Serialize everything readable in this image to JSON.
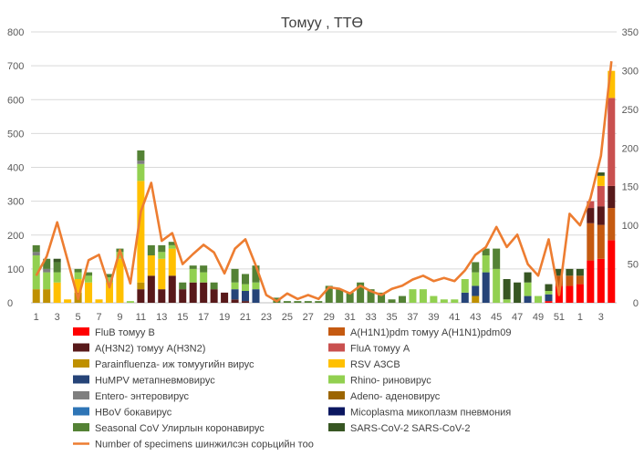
{
  "chart_data": {
    "type": "bar",
    "stacked": true,
    "title": "Томуу , ТТӨ",
    "xlabel": "",
    "ylabel": "",
    "ylim": [
      0,
      800
    ],
    "y2lim": [
      0,
      350
    ],
    "y_ticks": [
      0,
      100,
      200,
      300,
      400,
      500,
      600,
      700,
      800
    ],
    "y2_ticks": [
      0,
      50,
      100,
      150,
      200,
      250,
      300,
      350
    ],
    "x_tick_labels": [
      "1",
      "3",
      "5",
      "7",
      "9",
      "11",
      "13",
      "15",
      "17",
      "19",
      "21",
      "23",
      "25",
      "27",
      "29",
      "31",
      "33",
      "35",
      "37",
      "39",
      "41",
      "43",
      "45",
      "47",
      "49",
      "51",
      "1",
      "3"
    ],
    "categories": [
      "1",
      "2",
      "3",
      "4",
      "5",
      "6",
      "7",
      "8",
      "9",
      "10",
      "11",
      "12",
      "13",
      "14",
      "15",
      "16",
      "17",
      "18",
      "19",
      "20",
      "21",
      "22",
      "23",
      "24",
      "25",
      "26",
      "27",
      "28",
      "29",
      "30",
      "31",
      "32",
      "33",
      "34",
      "35",
      "36",
      "37",
      "38",
      "39",
      "40",
      "41",
      "42",
      "43",
      "44",
      "45",
      "46",
      "47",
      "48",
      "49",
      "50",
      "51",
      "52",
      "1",
      "2",
      "3",
      "4"
    ],
    "grid": true,
    "legend_position": "bottom",
    "series": [
      {
        "name": "FluB томуу B",
        "color": "#ff0000",
        "values": [
          0,
          0,
          0,
          0,
          0,
          0,
          0,
          0,
          0,
          0,
          0,
          0,
          0,
          0,
          0,
          0,
          0,
          0,
          0,
          0,
          0,
          0,
          0,
          0,
          0,
          0,
          0,
          0,
          0,
          0,
          0,
          0,
          0,
          0,
          0,
          0,
          0,
          0,
          0,
          0,
          0,
          0,
          0,
          0,
          0,
          0,
          0,
          0,
          0,
          5,
          50,
          50,
          55,
          125,
          130,
          185
        ]
      },
      {
        "name": "A(H1N1)pdm томуу A(H1N1)pdm09",
        "color": "#c55a11",
        "values": [
          0,
          0,
          0,
          0,
          0,
          0,
          0,
          0,
          0,
          0,
          0,
          0,
          0,
          0,
          0,
          0,
          0,
          0,
          0,
          0,
          0,
          0,
          0,
          0,
          0,
          0,
          0,
          0,
          0,
          0,
          0,
          0,
          0,
          0,
          0,
          0,
          0,
          0,
          0,
          0,
          0,
          0,
          0,
          0,
          0,
          0,
          0,
          0,
          0,
          0,
          30,
          30,
          25,
          110,
          100,
          95
        ]
      },
      {
        "name": "A(H3N2) томуу A(H3N2)",
        "color": "#58191a",
        "values": [
          0,
          0,
          0,
          0,
          0,
          0,
          0,
          0,
          0,
          0,
          40,
          80,
          40,
          80,
          40,
          60,
          60,
          40,
          30,
          10,
          5,
          0,
          0,
          0,
          0,
          0,
          0,
          0,
          0,
          0,
          0,
          0,
          0,
          0,
          0,
          0,
          0,
          0,
          0,
          0,
          0,
          0,
          0,
          0,
          0,
          0,
          0,
          0,
          0,
          0,
          0,
          0,
          0,
          45,
          55,
          65
        ]
      },
      {
        "name": "FluA томуу A",
        "color": "#c9504f",
        "values": [
          0,
          0,
          0,
          0,
          0,
          0,
          0,
          0,
          0,
          0,
          0,
          0,
          0,
          0,
          0,
          0,
          0,
          0,
          0,
          0,
          0,
          0,
          0,
          0,
          0,
          0,
          0,
          0,
          0,
          0,
          0,
          0,
          0,
          0,
          0,
          0,
          0,
          0,
          0,
          0,
          0,
          0,
          0,
          0,
          0,
          0,
          0,
          0,
          0,
          0,
          0,
          0,
          0,
          20,
          60,
          260
        ]
      },
      {
        "name": "Parainfluenza- иж томуугийн вирус",
        "color": "#bf9000",
        "values": [
          40,
          40,
          0,
          0,
          30,
          0,
          0,
          0,
          0,
          0,
          20,
          0,
          0,
          0,
          0,
          0,
          0,
          0,
          0,
          0,
          0,
          0,
          0,
          0,
          0,
          0,
          0,
          0,
          0,
          0,
          0,
          0,
          0,
          0,
          0,
          0,
          0,
          0,
          0,
          0,
          0,
          0,
          20,
          0,
          0,
          0,
          0,
          0,
          0,
          0,
          0,
          0,
          0,
          0,
          0,
          0
        ]
      },
      {
        "name": "RSV АЗСВ",
        "color": "#ffc000",
        "values": [
          0,
          0,
          60,
          10,
          40,
          60,
          10,
          60,
          130,
          0,
          300,
          60,
          90,
          80,
          0,
          0,
          0,
          0,
          0,
          0,
          0,
          0,
          0,
          0,
          0,
          0,
          0,
          0,
          0,
          0,
          0,
          0,
          0,
          0,
          0,
          0,
          0,
          0,
          0,
          0,
          0,
          0,
          0,
          0,
          0,
          0,
          0,
          0,
          0,
          0,
          0,
          0,
          0,
          0,
          30,
          80
        ]
      },
      {
        "name": "HuMPV метапневмовирус",
        "color": "#264478",
        "values": [
          0,
          0,
          0,
          0,
          0,
          0,
          0,
          0,
          0,
          0,
          0,
          0,
          0,
          0,
          0,
          0,
          0,
          0,
          0,
          30,
          30,
          40,
          0,
          0,
          0,
          0,
          0,
          0,
          0,
          0,
          0,
          0,
          0,
          0,
          0,
          0,
          0,
          0,
          0,
          0,
          0,
          30,
          30,
          90,
          0,
          0,
          0,
          20,
          0,
          20,
          0,
          0,
          0,
          0,
          0,
          0
        ]
      },
      {
        "name": "Rhino- риновирус",
        "color": "#92d050",
        "values": [
          100,
          50,
          30,
          0,
          20,
          20,
          0,
          15,
          20,
          5,
          50,
          0,
          20,
          10,
          0,
          40,
          30,
          0,
          0,
          20,
          20,
          20,
          0,
          0,
          0,
          0,
          0,
          0,
          0,
          0,
          0,
          0,
          0,
          0,
          0,
          0,
          40,
          40,
          20,
          10,
          10,
          40,
          40,
          50,
          100,
          10,
          0,
          40,
          20,
          10,
          0,
          0,
          0,
          0,
          0,
          0
        ]
      },
      {
        "name": "Entero- энтеровирус",
        "color": "#7f7f7f",
        "values": [
          10,
          10,
          0,
          0,
          0,
          0,
          0,
          0,
          0,
          0,
          10,
          0,
          0,
          0,
          0,
          0,
          0,
          0,
          0,
          0,
          0,
          0,
          0,
          0,
          0,
          0,
          0,
          0,
          0,
          0,
          0,
          0,
          0,
          0,
          0,
          0,
          0,
          0,
          0,
          0,
          0,
          0,
          0,
          0,
          0,
          0,
          0,
          0,
          0,
          0,
          0,
          0,
          0,
          0,
          0,
          0
        ]
      },
      {
        "name": "Adeno- аденовирус",
        "color": "#9c6500",
        "values": [
          0,
          0,
          0,
          0,
          0,
          0,
          0,
          0,
          0,
          0,
          0,
          0,
          0,
          0,
          0,
          0,
          0,
          0,
          0,
          0,
          0,
          0,
          0,
          0,
          0,
          0,
          0,
          0,
          0,
          0,
          0,
          0,
          0,
          0,
          0,
          0,
          0,
          0,
          0,
          0,
          0,
          0,
          0,
          0,
          0,
          0,
          0,
          0,
          0,
          0,
          0,
          0,
          0,
          0,
          0,
          0
        ]
      },
      {
        "name": "HBoV бокавирус",
        "color": "#2e75b6",
        "values": [
          0,
          0,
          0,
          0,
          0,
          0,
          0,
          0,
          0,
          0,
          0,
          0,
          0,
          0,
          0,
          0,
          0,
          0,
          0,
          0,
          0,
          0,
          0,
          0,
          0,
          0,
          0,
          0,
          0,
          0,
          0,
          0,
          0,
          0,
          0,
          0,
          0,
          0,
          0,
          0,
          0,
          0,
          0,
          0,
          0,
          0,
          0,
          0,
          0,
          0,
          0,
          0,
          0,
          0,
          0,
          0
        ]
      },
      {
        "name": "Micoplasma микоплазм пневмония",
        "color": "#0b1760",
        "values": [
          0,
          0,
          0,
          0,
          0,
          0,
          0,
          0,
          0,
          0,
          0,
          0,
          0,
          0,
          0,
          0,
          0,
          0,
          0,
          0,
          0,
          0,
          0,
          0,
          0,
          0,
          0,
          0,
          0,
          0,
          0,
          0,
          0,
          0,
          0,
          0,
          0,
          0,
          0,
          0,
          0,
          0,
          0,
          0,
          0,
          0,
          0,
          0,
          0,
          0,
          0,
          0,
          0,
          0,
          0,
          0
        ]
      },
      {
        "name": "Seasonal CoV Улирлын коронавирус",
        "color": "#548235",
        "values": [
          20,
          30,
          30,
          0,
          10,
          10,
          0,
          10,
          10,
          0,
          30,
          30,
          20,
          10,
          20,
          10,
          20,
          20,
          0,
          40,
          30,
          50,
          0,
          15,
          5,
          5,
          5,
          5,
          50,
          40,
          30,
          60,
          40,
          30,
          10,
          20,
          0,
          0,
          0,
          0,
          0,
          0,
          30,
          20,
          60,
          0,
          0,
          0,
          0,
          0,
          0,
          0,
          0,
          0,
          0,
          0
        ]
      },
      {
        "name": "SARS-CoV-2 SARS-CoV-2",
        "color": "#375623",
        "values": [
          0,
          0,
          10,
          0,
          0,
          0,
          0,
          0,
          0,
          0,
          0,
          0,
          0,
          0,
          0,
          0,
          0,
          0,
          0,
          0,
          0,
          0,
          0,
          0,
          0,
          0,
          0,
          0,
          0,
          0,
          0,
          0,
          0,
          0,
          0,
          0,
          0,
          0,
          0,
          0,
          0,
          0,
          0,
          0,
          0,
          60,
          60,
          30,
          0,
          20,
          20,
          20,
          20,
          0,
          10,
          0
        ]
      }
    ],
    "line_series": {
      "name": "Number of specimens шинжилсэн сорьцийн тоо",
      "color": "#ed7d31",
      "axis": "secondary",
      "values": [
        35,
        60,
        104,
        55,
        5,
        55,
        62,
        20,
        68,
        25,
        118,
        155,
        80,
        90,
        50,
        63,
        75,
        65,
        38,
        70,
        82,
        48,
        10,
        2,
        12,
        5,
        10,
        5,
        20,
        18,
        12,
        22,
        15,
        10,
        18,
        22,
        30,
        35,
        28,
        32,
        28,
        42,
        62,
        72,
        98,
        72,
        88,
        50,
        35,
        82,
        10,
        115,
        100,
        135,
        190,
        312
      ]
    }
  }
}
